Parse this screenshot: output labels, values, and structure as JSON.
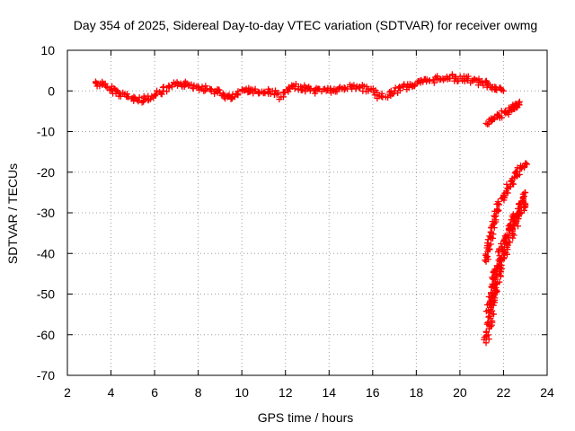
{
  "chart_data": {
    "type": "scatter",
    "title": "Day 354 of 2025, Sidereal Day-to-day VTEC variation (SDTVAR) for receiver owmg",
    "xlabel": "GPS time / hours",
    "ylabel": "SDTVAR / TECUs",
    "xlim": [
      2,
      24
    ],
    "ylim": [
      -70,
      10
    ],
    "xticks": [
      2,
      4,
      6,
      8,
      10,
      12,
      14,
      16,
      18,
      20,
      22,
      24
    ],
    "yticks": [
      -70,
      -60,
      -50,
      -40,
      -30,
      -20,
      -10,
      0,
      10
    ],
    "grid": true,
    "marker": "plus",
    "color": "#ff0000",
    "series": [
      {
        "name": "main band",
        "x": [
          3.3,
          3.6,
          4.0,
          4.4,
          4.8,
          5.2,
          5.6,
          6.0,
          6.4,
          6.8,
          7.2,
          7.6,
          8.0,
          8.4,
          8.8,
          9.2,
          9.5,
          9.8,
          10.2,
          10.6,
          11.0,
          11.4,
          11.8,
          12.2,
          12.6,
          13.0,
          13.4,
          13.8,
          14.2,
          14.6,
          15.0,
          15.4,
          15.8,
          16.2,
          16.6,
          17.0,
          17.4,
          17.8,
          18.2,
          18.6,
          19.0,
          19.4,
          19.8,
          20.2,
          20.6,
          21.0,
          21.3,
          21.6,
          22.0
        ],
        "y": [
          2.0,
          1.5,
          0.5,
          -0.5,
          -1.5,
          -2.2,
          -2.0,
          -1.0,
          0.0,
          1.0,
          1.8,
          1.5,
          1.0,
          0.5,
          0.0,
          -1.0,
          -2.0,
          -1.0,
          0.5,
          0.0,
          -0.5,
          0.0,
          -1.5,
          0.5,
          1.0,
          0.5,
          0.0,
          0.5,
          0.0,
          0.5,
          1.0,
          1.0,
          0.5,
          -1.0,
          -1.5,
          0.0,
          1.0,
          1.5,
          2.0,
          2.5,
          3.0,
          3.5,
          3.0,
          3.0,
          2.5,
          2.0,
          1.5,
          1.0,
          0.0
        ]
      },
      {
        "name": "short segment",
        "x": [
          21.2,
          21.5,
          21.8,
          22.1,
          22.4,
          22.6,
          22.7
        ],
        "y": [
          -8.0,
          -7.0,
          -6.0,
          -5.5,
          -4.5,
          -3.5,
          -3.0
        ]
      },
      {
        "name": "steep trace A",
        "x": [
          21.2,
          21.4,
          21.6,
          21.8,
          22.0,
          22.2,
          22.4,
          22.6,
          22.8,
          23.0
        ],
        "y": [
          -42.0,
          -36.0,
          -31.0,
          -28.0,
          -26.0,
          -24.0,
          -22.0,
          -20.5,
          -19.0,
          -18.0
        ]
      },
      {
        "name": "steep trace B",
        "x": [
          21.3,
          21.5,
          21.7,
          21.9,
          22.1,
          22.3,
          22.5,
          22.7,
          22.9,
          23.0
        ],
        "y": [
          -54.0,
          -48.0,
          -43.0,
          -39.0,
          -36.0,
          -33.0,
          -31.0,
          -29.0,
          -27.0,
          -25.0
        ]
      },
      {
        "name": "steep trace C",
        "x": [
          21.2,
          21.4,
          21.6,
          21.8,
          22.0,
          22.2,
          22.4,
          22.6,
          22.8,
          23.0
        ],
        "y": [
          -62.0,
          -56.0,
          -50.0,
          -45.0,
          -41.0,
          -38.0,
          -35.0,
          -32.0,
          -30.0,
          -28.0
        ]
      }
    ]
  }
}
